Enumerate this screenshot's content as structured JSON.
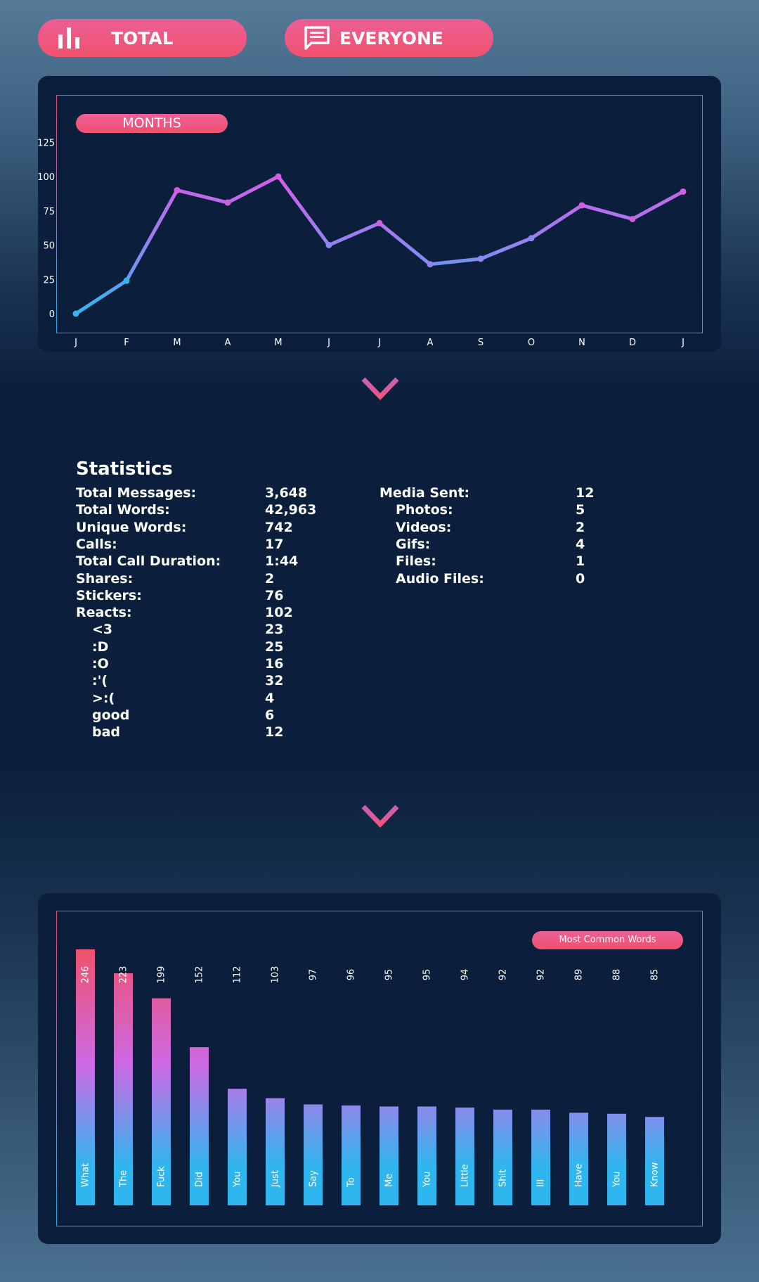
{
  "toolbar": {
    "total_label": "TOTAL",
    "total_icon": "bar-chart-icon",
    "everyone_label": "EVERYONE",
    "everyone_icon": "chat-bubble-icon"
  },
  "chart_data": [
    {
      "type": "line",
      "title": "MONTHS",
      "categories": [
        "J",
        "F",
        "M",
        "A",
        "M",
        "J",
        "J",
        "A",
        "S",
        "O",
        "N",
        "D",
        "J"
      ],
      "values": [
        0,
        24,
        90,
        81,
        100,
        50,
        66,
        36,
        40,
        55,
        79,
        69,
        89
      ],
      "ylim": [
        0,
        125
      ],
      "yticks": [
        0,
        25,
        50,
        75,
        100,
        125
      ],
      "grid": false,
      "colors": {
        "low": "#33b5ee",
        "high": "#d35ee6"
      }
    },
    {
      "type": "bar",
      "title": "Most Common Words",
      "categories": [
        "What",
        "The",
        "Fuck",
        "Did",
        "You",
        "Just",
        "Say",
        "To",
        "Me",
        "You",
        "Little",
        "Shit",
        "Ill",
        "Have",
        "You",
        "Know"
      ],
      "values": [
        246,
        223,
        199,
        152,
        112,
        103,
        97,
        96,
        95,
        95,
        94,
        92,
        92,
        89,
        88,
        85
      ],
      "value_labels": [
        "246",
        "223",
        "199",
        "152",
        "112",
        "103",
        "97",
        "96",
        "95",
        "95",
        "94",
        "92",
        "92",
        "89",
        "88",
        "85"
      ],
      "grid": false,
      "colors": {
        "top": "#f0516d",
        "mid": "#cd6ae6",
        "bottom": "#30b6ee"
      }
    }
  ],
  "stats": {
    "title": "Statistics",
    "left": [
      {
        "label": "Total Messages:",
        "value": "3,648"
      },
      {
        "label": "Total Words:",
        "value": "42,963"
      },
      {
        "label": "Unique Words:",
        "value": "742"
      },
      {
        "label": "Calls:",
        "value": "17"
      },
      {
        "label": "Total Call Duration:",
        "value": "1:44"
      },
      {
        "label": "Shares:",
        "value": "2"
      },
      {
        "label": "Stickers:",
        "value": "76"
      },
      {
        "label": "Reacts:",
        "value": "102"
      },
      {
        "label": "<3",
        "value": "23"
      },
      {
        "label": ":D",
        "value": "25"
      },
      {
        "label": ":O",
        "value": "16"
      },
      {
        "label": ":'(",
        "value": "32"
      },
      {
        "label": ">:(",
        "value": "4"
      },
      {
        "label": "good",
        "value": "6"
      },
      {
        "label": "bad",
        "value": "12"
      }
    ],
    "right": [
      {
        "label": "Media Sent:",
        "value": "12"
      },
      {
        "label": "Photos:",
        "value": "5"
      },
      {
        "label": "Videos:",
        "value": "2"
      },
      {
        "label": "Gifs:",
        "value": "4"
      },
      {
        "label": "Files:",
        "value": "1"
      },
      {
        "label": "Audio Files:",
        "value": "0"
      }
    ]
  },
  "icons": {
    "scroll_down_1": "chevron-down-icon",
    "scroll_down_2": "chevron-down-icon"
  }
}
